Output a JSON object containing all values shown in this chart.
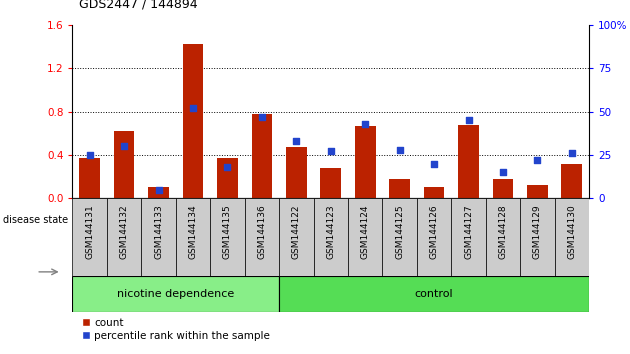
{
  "title": "GDS2447 / 144894",
  "samples": [
    "GSM144131",
    "GSM144132",
    "GSM144133",
    "GSM144134",
    "GSM144135",
    "GSM144136",
    "GSM144122",
    "GSM144123",
    "GSM144124",
    "GSM144125",
    "GSM144126",
    "GSM144127",
    "GSM144128",
    "GSM144129",
    "GSM144130"
  ],
  "count_values": [
    0.37,
    0.62,
    0.1,
    1.42,
    0.37,
    0.78,
    0.47,
    0.28,
    0.67,
    0.18,
    0.1,
    0.68,
    0.18,
    0.12,
    0.32
  ],
  "percentile_values": [
    25,
    30,
    5,
    52,
    18,
    47,
    33,
    27,
    43,
    28,
    20,
    45,
    15,
    22,
    26
  ],
  "nicotine_count": 6,
  "control_count": 9,
  "ylim_left": [
    0,
    1.6
  ],
  "ylim_right": [
    0,
    100
  ],
  "yticks_left": [
    0,
    0.4,
    0.8,
    1.2,
    1.6
  ],
  "yticks_right": [
    0,
    25,
    50,
    75,
    100
  ],
  "bar_color": "#bb2200",
  "dot_color": "#2244cc",
  "nicotine_bg": "#88ee88",
  "control_bg": "#55dd55",
  "label_bg": "#cccccc",
  "disease_state_label": "disease state",
  "nicotine_label": "nicotine dependence",
  "control_label": "control",
  "legend_count": "count",
  "legend_percentile": "percentile rank within the sample",
  "figure_bg": "#ffffff"
}
